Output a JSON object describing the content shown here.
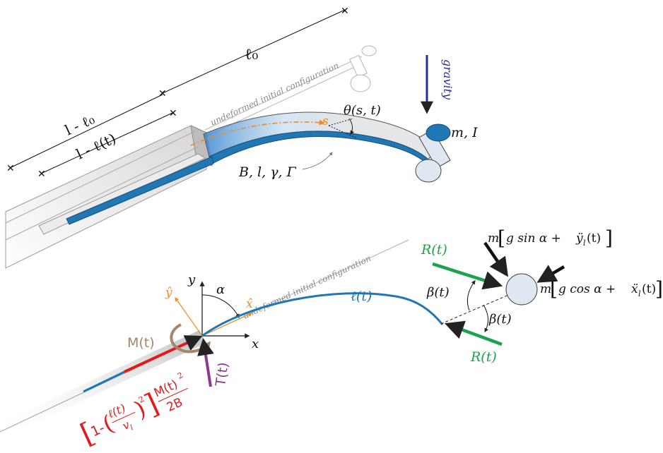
{
  "top": {
    "l0": "ℓ₀",
    "l_minus_l0": "l - ℓ₀",
    "l_minus_lt": "l - ℓ(t)",
    "undeformed_label": "undeformed initial configuration",
    "gravity": "gravity",
    "theta": "θ(s, t)",
    "s": "s",
    "mI": "m, I",
    "params": "B, l, γ, Γ"
  },
  "bottom": {
    "undeformed_label": "undeformed initial configuration",
    "y": "y",
    "x": "x",
    "yhat": "ŷ",
    "xhat": "x̂",
    "alpha": "α",
    "lt": "ℓ(t)",
    "M": "M(t)",
    "T": "T(t)",
    "force_expr": "[1-(ℓ̇(t)²/v_l)]M(t)²/2B",
    "force_bracket_left": "[",
    "force_one_minus": "1-",
    "force_num": "ℓ̇(t)",
    "force_exp": "2",
    "force_den": "v",
    "force_den_sub": "l",
    "force_bracket_right": "]",
    "force_M": "M(t)",
    "force_M_exp": "2",
    "force_2B": "2B",
    "R_top": "R(t)",
    "R_bot": "R(t)",
    "beta_left": "β(t)",
    "beta_right": "β(t)",
    "eq_y": "m[g sin α + ÿ_l(t)]",
    "eq_y_m": "m",
    "eq_y_body": "g sin α + ",
    "eq_y_acc": "ÿ",
    "eq_y_sub": "l",
    "eq_y_tail": "(t)",
    "eq_x": "m[g cos α + ẍ_l(t)]",
    "eq_x_m": "m",
    "eq_x_body": "g cos α + ",
    "eq_x_acc": "ẍ",
    "eq_x_sub": "l",
    "eq_x_tail": "(t)"
  },
  "colors": {
    "blue": "#1f77b4",
    "orange": "#f08c1e",
    "red": "#e31a1c",
    "green": "#1aa34a",
    "purple": "#8b3a8f",
    "brown": "#a4876a",
    "navy": "#2b2e8f"
  }
}
